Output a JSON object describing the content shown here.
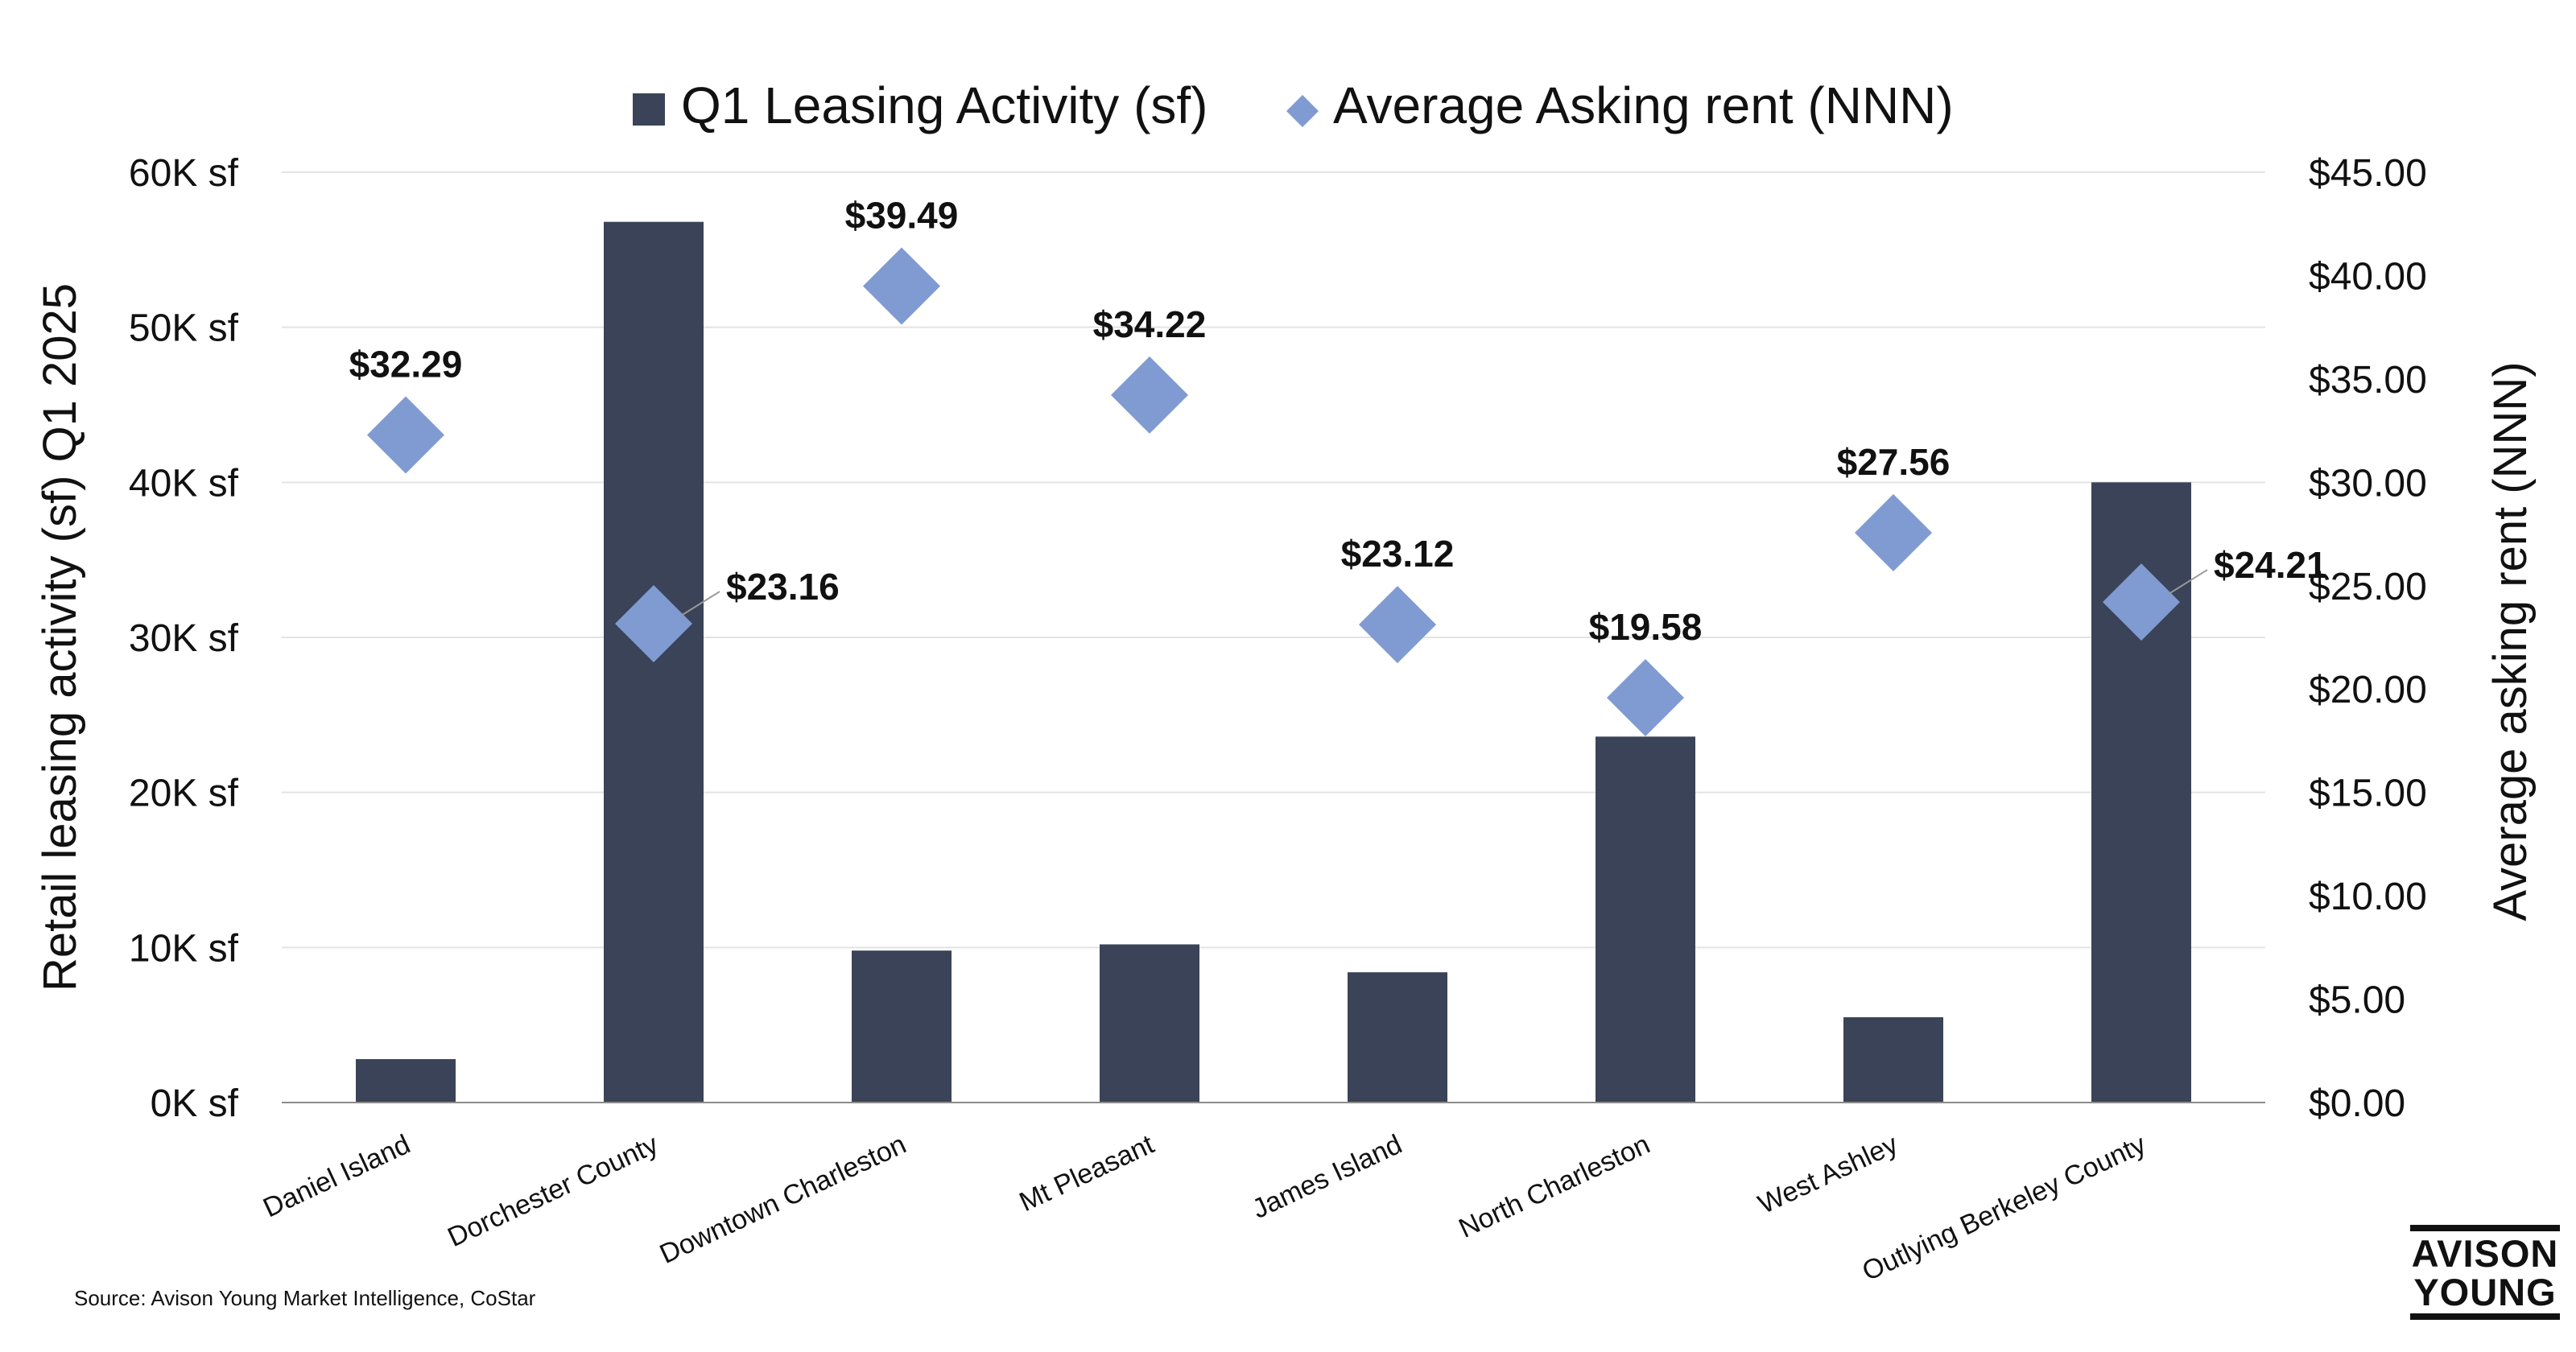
{
  "chart_data": {
    "type": "bar",
    "title": "",
    "categories": [
      "Daniel Island",
      "Dorchester County",
      "Downtown Charleston",
      "Mt Pleasant",
      "James Island",
      "North Charleston",
      "West Ashley",
      "Outlying Berkeley County"
    ],
    "series": [
      {
        "name": "Q1 Leasing Activity (sf)",
        "type": "bar",
        "axis": "left",
        "color": "#3a4357",
        "values": [
          2800,
          56800,
          9800,
          10200,
          8400,
          23600,
          5500,
          40000
        ]
      },
      {
        "name": "Average Asking rent (NNN)",
        "type": "scatter",
        "marker": "diamond",
        "axis": "right",
        "color": "#7f9bd1",
        "values": [
          32.29,
          23.16,
          39.49,
          34.22,
          23.12,
          19.58,
          27.56,
          24.21
        ],
        "labels": [
          "$32.29",
          "$23.16",
          "$39.49",
          "$34.22",
          "$23.12",
          "$19.58",
          "$27.56",
          "$24.21"
        ]
      }
    ],
    "ylabel": "Retail leasing activity (sf) Q1 2025",
    "ylabel_right": "Average asking rent (NNN)",
    "ylim": [
      0,
      60000
    ],
    "ylim_right": [
      0,
      45
    ],
    "yticks": [
      "0K sf",
      "10K sf",
      "20K sf",
      "30K sf",
      "40K sf",
      "50K sf",
      "60K sf"
    ],
    "yticks_right": [
      "$0.00",
      "$5.00",
      "$10.00",
      "$15.00",
      "$20.00",
      "$25.00",
      "$30.00",
      "$35.00",
      "$40.00",
      "$45.00"
    ],
    "grid": true,
    "legend_position": "top-center"
  },
  "source": "Source: Avison Young Market Intelligence, CoStar",
  "logo": {
    "line1": "AVISON",
    "line2": "YOUNG"
  }
}
